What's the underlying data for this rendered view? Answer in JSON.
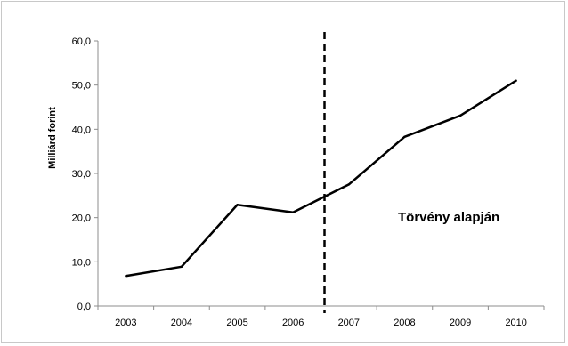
{
  "chart_data": {
    "type": "line",
    "categories": [
      "2003",
      "2004",
      "2005",
      "2006",
      "2007",
      "2008",
      "2009",
      "2010"
    ],
    "series": [
      {
        "values": [
          6.8,
          8.9,
          22.9,
          21.2,
          27.5,
          38.3,
          43.1,
          51.0
        ]
      }
    ],
    "ylabel": "Milliárd forint",
    "xlabel": "",
    "title": "",
    "ylim": [
      0,
      60
    ],
    "yticks": [
      "0,0",
      "10,0",
      "20,0",
      "30,0",
      "40,0",
      "50,0",
      "60,0"
    ],
    "ytick_values": [
      0,
      10,
      20,
      30,
      40,
      50,
      60
    ],
    "grid": false,
    "vertical_marker": {
      "style": "dashed",
      "between": [
        "2006",
        "2007"
      ]
    },
    "annotation": "Törvény alapján",
    "line_color": "#000000"
  }
}
